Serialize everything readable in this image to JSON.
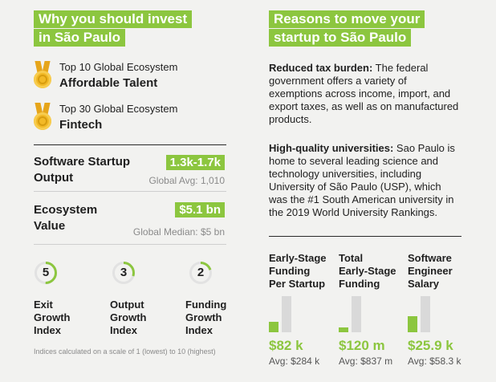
{
  "left": {
    "headline_line1": "Why you should invest",
    "headline_line2": "in São Paulo",
    "awards": [
      {
        "small": "Top 10 Global Ecosystem",
        "big": "Affordable Talent"
      },
      {
        "small": "Top 30 Global Ecosystem",
        "big": "Fintech"
      }
    ],
    "metrics": [
      {
        "label_line1": "Software Startup",
        "label_line2": "Output",
        "value": "1.3k-1.7k",
        "sub": "Global Avg: 1,010"
      },
      {
        "label_line1": "Ecosystem",
        "label_line2": "Value",
        "value": "$5.1 bn",
        "sub": "Global Median: $5 bn"
      }
    ],
    "indices": [
      {
        "value": "5",
        "score": 5,
        "label": [
          "Exit",
          "Growth",
          "Index"
        ]
      },
      {
        "value": "3",
        "score": 3,
        "label": [
          "Output",
          "Growth",
          "Index"
        ]
      },
      {
        "value": "2",
        "score": 2,
        "label": [
          "Funding",
          "Growth",
          "Index"
        ]
      }
    ],
    "scale_max": 10,
    "footnote": "Indices calculated on a scale of 1 (lowest) to 10 (highest)"
  },
  "right": {
    "headline_line1": "Reasons to move your",
    "headline_line2": "startup to São Paulo",
    "para1_bold": "Reduced tax burden:",
    "para1_text": " The federal government offers a variety of exemptions across income, import, and export taxes, as well as on manufactured products.",
    "para2_bold": "High-quality universities:",
    "para2_text": " Sao Paulo is home to several leading science and technology universities, including University of São Paulo (USP), which was the #1 South American university in the 2019 World University Rankings.",
    "funding": [
      {
        "head": [
          "Early-Stage",
          "Funding",
          "Per Startup"
        ],
        "value": "$82 k",
        "avg": "Avg: $284 k",
        "ratio": 0.29
      },
      {
        "head": [
          "Total",
          "Early-Stage",
          "Funding"
        ],
        "value": "$120 m",
        "avg": "Avg: $837 m",
        "ratio": 0.14
      },
      {
        "head": [
          "Software",
          "Engineer",
          "Salary"
        ],
        "value": "$25.9 k",
        "avg": "Avg: $58.3 k",
        "ratio": 0.44
      }
    ]
  },
  "colors": {
    "accent": "#8cc63f",
    "bar_gray": "#d9d9d9",
    "medal": "#f2b927"
  }
}
